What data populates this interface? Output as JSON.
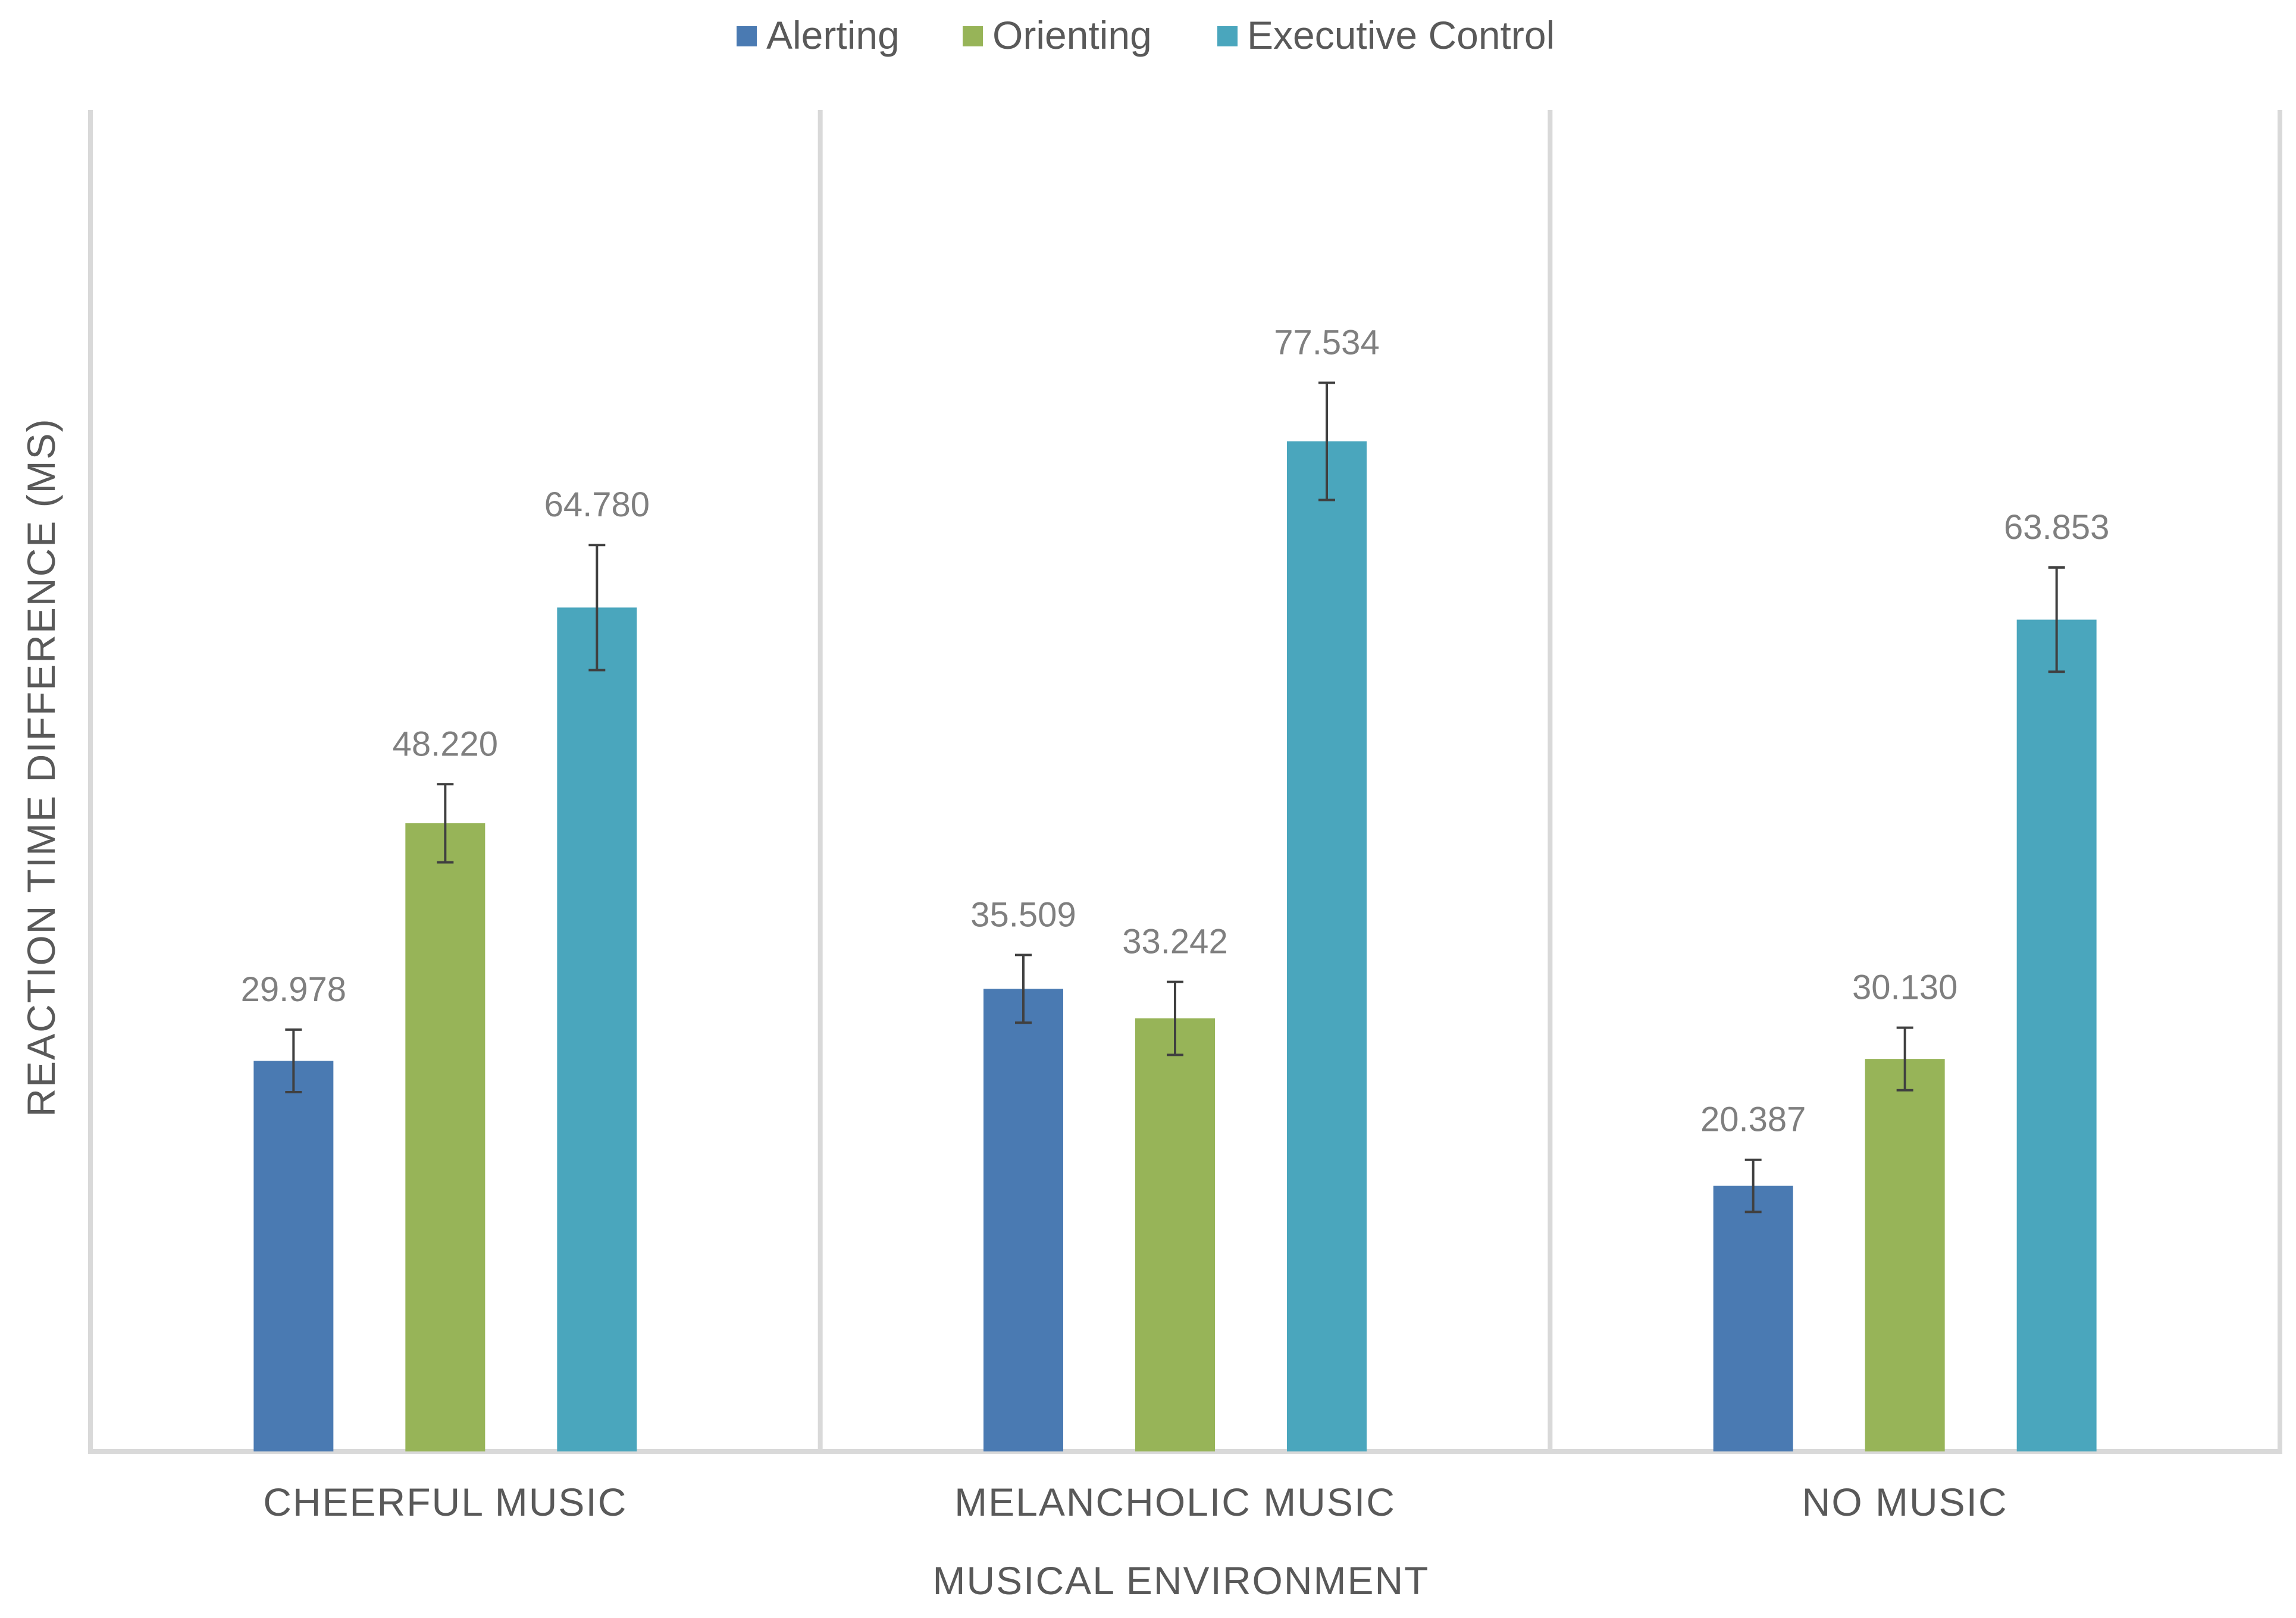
{
  "chart_data": {
    "type": "bar",
    "title": "",
    "xlabel": "MUSICAL ENVIRONMENT",
    "ylabel": "REACTION TIME DIFFERENCE (MS)",
    "categories": [
      "CHEERFUL MUSIC",
      "MELANCHOLIC MUSIC",
      "NO MUSIC"
    ],
    "series": [
      {
        "name": "Alerting",
        "color": "#4a7ab2",
        "values": [
          29.978,
          35.509,
          20.387
        ],
        "errors": [
          2.4,
          2.6,
          2.0
        ],
        "labels": [
          "29.978",
          "35.509",
          "20.387"
        ]
      },
      {
        "name": "Orienting",
        "color": "#97b458",
        "values": [
          48.22,
          33.242,
          30.13
        ],
        "errors": [
          3.0,
          2.8,
          2.4
        ],
        "labels": [
          "48.220",
          "33.242",
          "30.130"
        ]
      },
      {
        "name": "Executive Control",
        "color": "#4aa6bd",
        "values": [
          64.78,
          77.534,
          63.853
        ],
        "errors": [
          4.8,
          4.5,
          4.0
        ],
        "labels": [
          "64.780",
          "77.534",
          "63.853"
        ]
      }
    ],
    "ylim": [
      0,
      90
    ],
    "grid": false,
    "legend": "top-center"
  }
}
